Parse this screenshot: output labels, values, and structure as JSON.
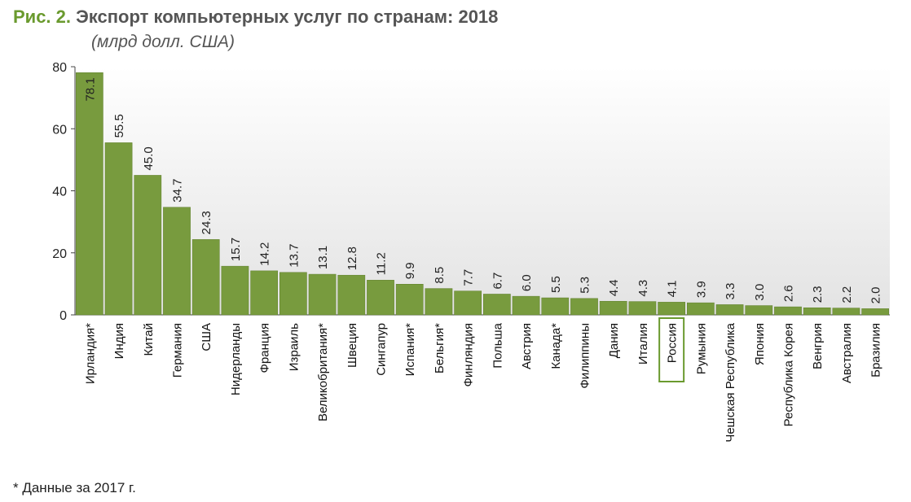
{
  "header": {
    "figure_label": "Рис. 2.",
    "title": "Экспорт компьютерных услуг по странам: 2018",
    "subtitle": "(млрд долл. США)"
  },
  "footnote": "* Данные за 2017 г.",
  "colors": {
    "bar": "#789b3e",
    "bar_edge": "#5f7f2c",
    "figure_label": "#6a9a2e",
    "highlight_box": "#6a9a2e"
  },
  "chart_data": {
    "type": "bar",
    "title": "Экспорт компьютерных услуг по странам: 2018",
    "ylabel": "(млрд долл. США)",
    "xlabel": "",
    "ylim": [
      0,
      80
    ],
    "yticks": [
      0,
      20,
      40,
      60,
      80
    ],
    "grid": false,
    "highlighted_category": "Россия",
    "categories": [
      "Ирландия*",
      "Индия",
      "Китай",
      "Германия",
      "США",
      "Нидерланды",
      "Франция",
      "Израиль",
      "Великобритания*",
      "Швеция",
      "Сингапур",
      "Испания*",
      "Бельгия*",
      "Финляндия",
      "Польша",
      "Австрия",
      "Канада*",
      "Филиппины",
      "Дания",
      "Италия",
      "Россия",
      "Румыния",
      "Чешская Республика",
      "Япония",
      "Республика Корея",
      "Венгрия",
      "Австралия",
      "Бразилия"
    ],
    "values": [
      78.1,
      55.5,
      45.0,
      34.7,
      24.3,
      15.7,
      14.2,
      13.7,
      13.1,
      12.8,
      11.2,
      9.9,
      8.5,
      7.7,
      6.7,
      6.0,
      5.5,
      5.3,
      4.4,
      4.3,
      4.1,
      3.9,
      3.3,
      3.0,
      2.6,
      2.3,
      2.2,
      2.0
    ],
    "value_labels": [
      "78.1",
      "55.5",
      "45.0",
      "34.7",
      "24.3",
      "15.7",
      "14.2",
      "13.7",
      "13.1",
      "12.8",
      "11.2",
      "9.9",
      "8.5",
      "7.7",
      "6.7",
      "6.0",
      "5.5",
      "5.3",
      "4.4",
      "4.3",
      "4.1",
      "3.9",
      "3.3",
      "3.0",
      "2.6",
      "2.3",
      "2.2",
      "2.0"
    ]
  }
}
